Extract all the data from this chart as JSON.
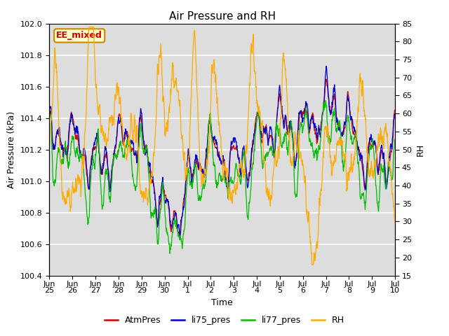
{
  "title": "Air Pressure and RH",
  "xlabel": "Time",
  "ylabel_left": "Air Pressure (kPa)",
  "ylabel_right": "RH",
  "ylim_left": [
    100.4,
    102.0
  ],
  "ylim_right": [
    15,
    85
  ],
  "yticks_left": [
    100.4,
    100.6,
    100.8,
    101.0,
    101.2,
    101.4,
    101.6,
    101.8,
    102.0
  ],
  "yticks_right": [
    15,
    20,
    25,
    30,
    35,
    40,
    45,
    50,
    55,
    60,
    65,
    70,
    75,
    80,
    85
  ],
  "xtick_labels": [
    "Jun\n25",
    "Jun\n26",
    "Jun\n27",
    "Jun\n28",
    "Jun\n29",
    "Jun\n30",
    "Jul\n1",
    "Jul\n2",
    "Jul\n3",
    "Jul\n4",
    "Jul\n5",
    "Jul\n6",
    "Jul\n7",
    "Jul\n8",
    "Jul\n9",
    "Jul\n10"
  ],
  "colors": {
    "AtmPres": "#cc0000",
    "li75_pres": "#0000cc",
    "li77_pres": "#00bb00",
    "RH": "#ffaa00"
  },
  "annotation_text": "EE_mixed",
  "annotation_color": "#cc0000",
  "annotation_bg": "#ffffcc",
  "annotation_border": "#cc8800",
  "plot_bg": "#dddddd",
  "grid_color": "#ffffff",
  "title_fontsize": 11,
  "legend_fontsize": 9,
  "axis_fontsize": 9,
  "tick_fontsize": 8
}
